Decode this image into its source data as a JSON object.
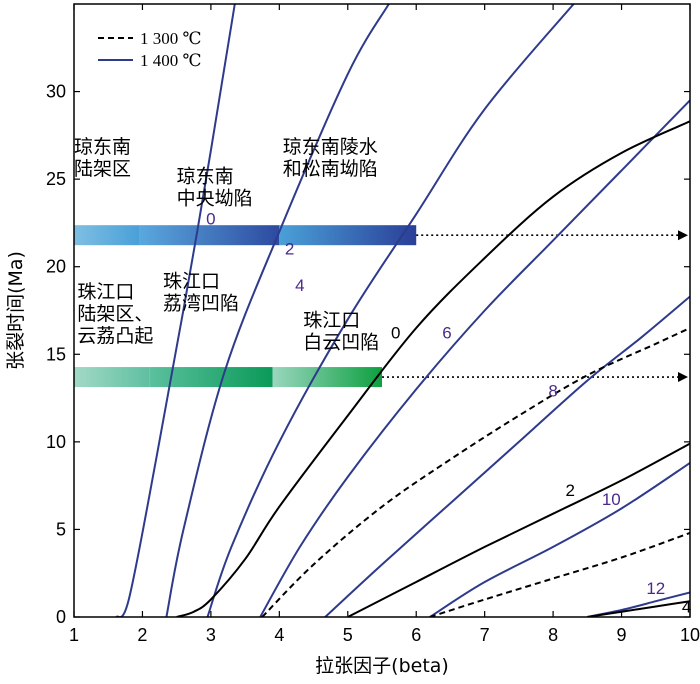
{
  "chart_data": {
    "type": "line",
    "xlabel": "拉张因子(beta)",
    "ylabel": "张裂时间(Ma)",
    "xlim": [
      1,
      10
    ],
    "ylim": [
      0,
      35
    ],
    "xticks": [
      1,
      2,
      3,
      4,
      5,
      6,
      7,
      8,
      9,
      10
    ],
    "yticks": [
      0,
      5,
      10,
      15,
      20,
      25,
      30
    ],
    "legend": [
      {
        "label": "1 300 ℃",
        "style": "dashed",
        "color": "#000000"
      },
      {
        "label": "1 400 ℃",
        "style": "solid",
        "color": "#2e3a8c"
      }
    ],
    "legend_position": "top-left",
    "series": [
      {
        "label": "0",
        "group": "1 400 ℃",
        "points": [
          [
            1.62,
            0
          ],
          [
            1.8,
            1
          ],
          [
            2.2,
            9
          ],
          [
            2.8,
            22
          ],
          [
            3.35,
            35
          ]
        ]
      },
      {
        "label": "2",
        "group": "1 400 ℃",
        "points": [
          [
            2.35,
            0
          ],
          [
            2.6,
            5
          ],
          [
            3.2,
            14
          ],
          [
            4.0,
            22
          ],
          [
            5.0,
            31
          ],
          [
            5.6,
            35
          ]
        ]
      },
      {
        "label": "4",
        "group": "1 400 ℃",
        "points": [
          [
            2.95,
            0
          ],
          [
            3.3,
            4
          ],
          [
            4.0,
            10
          ],
          [
            5.0,
            17
          ],
          [
            6.0,
            23
          ],
          [
            7.0,
            29
          ],
          [
            8.3,
            35
          ]
        ]
      },
      {
        "label": "6",
        "group": "1 400 ℃",
        "points": [
          [
            3.72,
            0
          ],
          [
            4.3,
            4
          ],
          [
            5.0,
            8
          ],
          [
            6.0,
            13
          ],
          [
            7.0,
            17.5
          ],
          [
            8.0,
            21.5
          ],
          [
            9.0,
            25.5
          ],
          [
            10.0,
            29.5
          ]
        ]
      },
      {
        "label": "8",
        "group": "1 400 ℃",
        "points": [
          [
            4.67,
            0
          ],
          [
            5.5,
            3
          ],
          [
            6.5,
            6.5
          ],
          [
            7.5,
            10
          ],
          [
            8.5,
            13.5
          ],
          [
            9.3,
            16
          ],
          [
            10.0,
            18.3
          ]
        ]
      },
      {
        "label": "10",
        "group": "1 400 ℃",
        "points": [
          [
            6.2,
            0
          ],
          [
            7.0,
            2
          ],
          [
            8.0,
            4
          ],
          [
            9.0,
            6.2
          ],
          [
            10.0,
            8.8
          ]
        ]
      },
      {
        "label": "12",
        "group": "1 400 ℃",
        "points": [
          [
            8.5,
            0
          ],
          [
            9.0,
            0.4
          ],
          [
            9.5,
            0.9
          ],
          [
            10.0,
            1.4
          ]
        ]
      },
      {
        "label": "0",
        "group": "1 300 ℃",
        "points": [
          [
            2.5,
            0
          ],
          [
            2.75,
            0.3
          ],
          [
            3.0,
            1.0
          ],
          [
            3.5,
            3.3
          ],
          [
            4.0,
            6.3
          ],
          [
            5.0,
            11.5
          ],
          [
            6.0,
            16.5
          ],
          [
            7.0,
            20.5
          ],
          [
            8.0,
            24.0
          ],
          [
            9.0,
            26.5
          ],
          [
            10.0,
            28.3
          ]
        ]
      },
      {
        "label": "2",
        "group": "1 300 ℃",
        "points": [
          [
            5.0,
            0
          ],
          [
            5.5,
            1.0
          ],
          [
            6.0,
            2.0
          ],
          [
            7.0,
            4.0
          ],
          [
            8.0,
            5.9
          ],
          [
            9.0,
            7.8
          ],
          [
            10.0,
            9.9
          ]
        ]
      },
      {
        "label": "4",
        "group": "1 300 ℃",
        "points": [
          [
            8.5,
            0
          ],
          [
            9.0,
            0.3
          ],
          [
            9.5,
            0.6
          ],
          [
            10.0,
            0.9
          ]
        ]
      },
      {
        "label": "",
        "group": "1 300 ℃ dashed",
        "style": "dashed",
        "points": [
          [
            3.75,
            0
          ],
          [
            4.5,
            3
          ],
          [
            5.5,
            6.3
          ],
          [
            6.5,
            9
          ],
          [
            7.5,
            11.5
          ],
          [
            8.5,
            13.8
          ],
          [
            9.5,
            15.6
          ],
          [
            10.0,
            16.5
          ]
        ]
      },
      {
        "label": "",
        "group": "1 300 ℃ dashed",
        "style": "dashed",
        "points": [
          [
            6.2,
            0
          ],
          [
            7.0,
            1.0
          ],
          [
            8.0,
            2.2
          ],
          [
            9.0,
            3.4
          ],
          [
            10.0,
            4.8
          ]
        ]
      }
    ],
    "curve_labels": [
      {
        "text": "0",
        "x": 3.0,
        "y": 22.4,
        "color": "purple"
      },
      {
        "text": "2",
        "x": 4.15,
        "y": 20.7,
        "color": "purple"
      },
      {
        "text": "4",
        "x": 4.3,
        "y": 18.6,
        "color": "purple"
      },
      {
        "text": "6",
        "x": 6.45,
        "y": 15.9,
        "color": "purple"
      },
      {
        "text": "8",
        "x": 8.0,
        "y": 12.6,
        "color": "purple"
      },
      {
        "text": "10",
        "x": 8.85,
        "y": 6.4,
        "color": "purple"
      },
      {
        "text": "12",
        "x": 9.5,
        "y": 1.3,
        "color": "purple"
      },
      {
        "text": "0",
        "x": 5.7,
        "y": 15.9,
        "color": "black"
      },
      {
        "text": "2",
        "x": 8.25,
        "y": 6.9,
        "color": "black"
      },
      {
        "text": "4",
        "x": 9.95,
        "y": 0.25,
        "color": "black"
      }
    ],
    "bands": [
      {
        "y": 21.8,
        "arrow_to": 10,
        "segments": [
          {
            "from": 1.0,
            "to": 1.95,
            "colors": [
              "#7fbfe3",
              "#4aa0d8"
            ]
          },
          {
            "from": 1.95,
            "to": 4.0,
            "colors": [
              "#5aa8de",
              "#2d4aa0"
            ]
          },
          {
            "from": 4.0,
            "to": 6.0,
            "colors": [
              "#4aa0d8",
              "#2a3f98"
            ]
          }
        ]
      },
      {
        "y": 13.7,
        "arrow_to": 10,
        "segments": [
          {
            "from": 1.0,
            "to": 2.1,
            "colors": [
              "#a3d9c6",
              "#5fc0a0"
            ]
          },
          {
            "from": 2.1,
            "to": 3.9,
            "colors": [
              "#5cc09e",
              "#0a9a58"
            ]
          },
          {
            "from": 3.9,
            "to": 5.5,
            "colors": [
              "#9ad6bf",
              "#0ea040"
            ]
          }
        ]
      }
    ],
    "region_labels": [
      {
        "lines": [
          "琼东南",
          "陆架区"
        ],
        "x": 1.0,
        "y": 26.5
      },
      {
        "lines": [
          "琼东南",
          "中央坳陷"
        ],
        "x": 2.5,
        "y": 24.8
      },
      {
        "lines": [
          "琼东南陵水",
          "和松南坳陷"
        ],
        "x": 4.05,
        "y": 26.5
      },
      {
        "lines": [
          "珠江口",
          "荔湾凹陷"
        ],
        "x": 2.3,
        "y": 18.8
      },
      {
        "lines": [
          "珠江口",
          "陆架区、",
          "云荔凸起"
        ],
        "x": 1.05,
        "y": 18.2
      },
      {
        "lines": [
          "珠江口",
          "白云凹陷"
        ],
        "x": 4.35,
        "y": 16.6
      }
    ]
  }
}
